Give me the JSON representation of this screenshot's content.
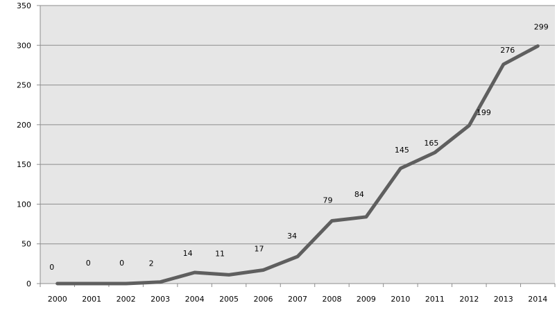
{
  "chart_data": {
    "type": "line",
    "x": [
      "2000",
      "2001",
      "2002",
      "2003",
      "2004",
      "2005",
      "2006",
      "2007",
      "2008",
      "2009",
      "2010",
      "2011",
      "2012",
      "2013",
      "2014"
    ],
    "series": [
      {
        "values": [
          0,
          0,
          0,
          2,
          14,
          11,
          17,
          34,
          79,
          84,
          145,
          165,
          199,
          276,
          299
        ]
      }
    ],
    "data_labels": [
      "0",
      "0",
      "0",
      "2",
      "14",
      "11",
      "17",
      "34",
      "79",
      "84",
      "145",
      "165",
      "199",
      "276",
      "299"
    ],
    "y_ticks": [
      "0",
      "50",
      "100",
      "150",
      "200",
      "250",
      "300",
      "350"
    ],
    "ylim": [
      0,
      350
    ],
    "grid": "horizontal",
    "legend": "none",
    "colors": {
      "plot_background": "#e6e6e6",
      "line": "#5f5f5f",
      "grid": "#8c8c8c"
    }
  }
}
